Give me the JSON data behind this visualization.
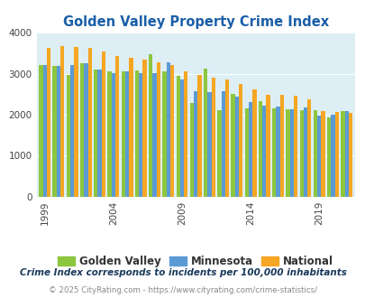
{
  "title": "Golden Valley Property Crime Index",
  "years": [
    1999,
    2000,
    2001,
    2002,
    2003,
    2004,
    2005,
    2006,
    2007,
    2008,
    2009,
    2010,
    2011,
    2012,
    2013,
    2014,
    2015,
    2016,
    2017,
    2018,
    2019,
    2020,
    2021
  ],
  "golden_valley": [
    3220,
    3200,
    2980,
    3260,
    3110,
    3050,
    3050,
    3090,
    3480,
    3050,
    2950,
    2280,
    3130,
    2110,
    2510,
    2160,
    2340,
    2160,
    2140,
    2120,
    2110,
    1930,
    2090
  ],
  "minnesota": [
    3210,
    3190,
    3220,
    3250,
    3100,
    3010,
    3060,
    3010,
    3020,
    3270,
    2870,
    2580,
    2560,
    2570,
    2450,
    2310,
    2230,
    2210,
    2140,
    2180,
    1980,
    2000,
    2090
  ],
  "national": [
    3640,
    3670,
    3650,
    3630,
    3550,
    3440,
    3400,
    3350,
    3290,
    3220,
    3060,
    2960,
    2910,
    2870,
    2740,
    2610,
    2490,
    2490,
    2460,
    2370,
    2100,
    2060,
    2050
  ],
  "golden_valley_color": "#8dc63f",
  "minnesota_color": "#5b9bd5",
  "national_color": "#f5a623",
  "plot_bg_color": "#ddeef5",
  "ylim": [
    0,
    4000
  ],
  "yticks": [
    0,
    1000,
    2000,
    3000,
    4000
  ],
  "xticks": [
    1999,
    2004,
    2009,
    2014,
    2019
  ],
  "footnote1": "Crime Index corresponds to incidents per 100,000 inhabitants",
  "footnote2": "© 2025 CityRating.com - https://www.cityrating.com/crime-statistics/",
  "legend_labels": [
    "Golden Valley",
    "Minnesota",
    "National"
  ],
  "title_color": "#1a5ea8",
  "footnote1_color": "#1a3a5c",
  "footnote2_color": "#888888"
}
